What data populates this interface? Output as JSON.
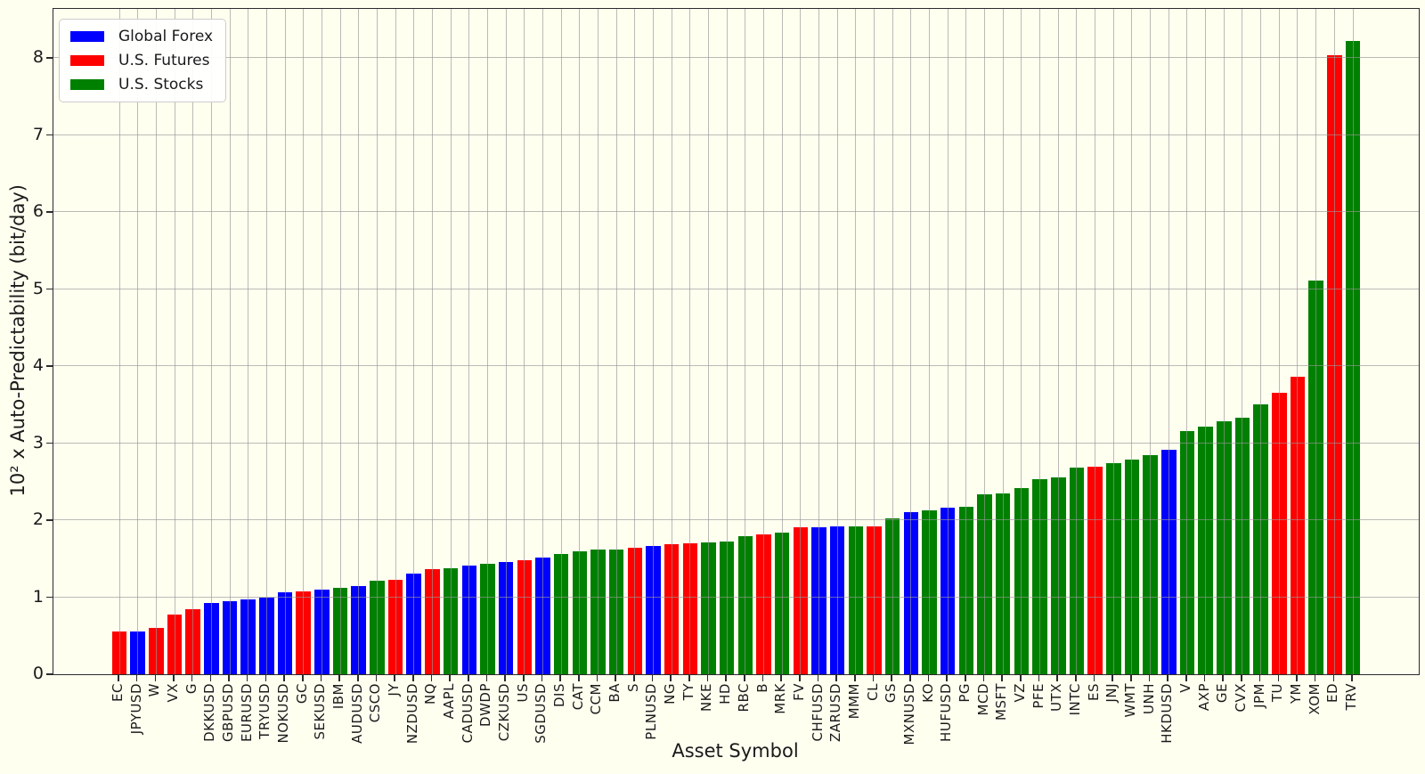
{
  "figure": {
    "background_color": "#FFFFF0",
    "xlabel": "Asset Symbol",
    "ylabel": "10² x Auto-Predictability (bit/day)",
    "y_ticks": [
      0,
      1,
      2,
      3,
      4,
      5,
      6,
      7,
      8
    ],
    "grid_color": "#969696",
    "spine_color": "#2b2b2b"
  },
  "legend": {
    "items": [
      {
        "label": "Global Forex",
        "color": "#0000FF"
      },
      {
        "label": "U.S. Futures",
        "color": "#FF0000"
      },
      {
        "label": "U.S. Stocks",
        "color": "#008000"
      }
    ]
  },
  "chart_data": {
    "type": "bar",
    "title": "",
    "xlabel": "Asset Symbol",
    "ylabel": "10^2 x Auto-Predictability (bit/day)",
    "ylim": [
      0,
      8.64
    ],
    "grid": true,
    "grid_above_bars": true,
    "legend_position": "upper left",
    "categories_legend": [
      "Global Forex",
      "U.S. Futures",
      "U.S. Stocks"
    ],
    "category_colors": {
      "Global Forex": "#0000FF",
      "U.S. Futures": "#FF0000",
      "U.S. Stocks": "#008000"
    },
    "bars": [
      {
        "symbol": "EC",
        "category": "U.S. Futures",
        "value": 0.55
      },
      {
        "symbol": "JPYUSD",
        "category": "Global Forex",
        "value": 0.56
      },
      {
        "symbol": "W",
        "category": "U.S. Futures",
        "value": 0.6
      },
      {
        "symbol": "VX",
        "category": "U.S. Futures",
        "value": 0.78
      },
      {
        "symbol": "G",
        "category": "U.S. Futures",
        "value": 0.84
      },
      {
        "symbol": "DKKUSD",
        "category": "Global Forex",
        "value": 0.93
      },
      {
        "symbol": "GBPUSD",
        "category": "Global Forex",
        "value": 0.95
      },
      {
        "symbol": "EURUSD",
        "category": "Global Forex",
        "value": 0.97
      },
      {
        "symbol": "TRYUSD",
        "category": "Global Forex",
        "value": 0.99
      },
      {
        "symbol": "NOKUSD",
        "category": "Global Forex",
        "value": 1.06
      },
      {
        "symbol": "GC",
        "category": "U.S. Futures",
        "value": 1.08
      },
      {
        "symbol": "SEKUSD",
        "category": "Global Forex",
        "value": 1.1
      },
      {
        "symbol": "IBM",
        "category": "U.S. Stocks",
        "value": 1.12
      },
      {
        "symbol": "AUDUSD",
        "category": "Global Forex",
        "value": 1.14
      },
      {
        "symbol": "CSCO",
        "category": "U.S. Stocks",
        "value": 1.21
      },
      {
        "symbol": "JY",
        "category": "U.S. Futures",
        "value": 1.23
      },
      {
        "symbol": "NZDUSD",
        "category": "Global Forex",
        "value": 1.31
      },
      {
        "symbol": "NQ",
        "category": "U.S. Futures",
        "value": 1.37
      },
      {
        "symbol": "AAPL",
        "category": "U.S. Stocks",
        "value": 1.38
      },
      {
        "symbol": "CADUSD",
        "category": "Global Forex",
        "value": 1.41
      },
      {
        "symbol": "DWDP",
        "category": "U.S. Stocks",
        "value": 1.44
      },
      {
        "symbol": "CZKUSD",
        "category": "Global Forex",
        "value": 1.46
      },
      {
        "symbol": "US",
        "category": "U.S. Futures",
        "value": 1.48
      },
      {
        "symbol": "SGDUSD",
        "category": "Global Forex",
        "value": 1.52
      },
      {
        "symbol": "DIS",
        "category": "U.S. Stocks",
        "value": 1.56
      },
      {
        "symbol": "CAT",
        "category": "U.S. Stocks",
        "value": 1.6
      },
      {
        "symbol": "CCM",
        "category": "U.S. Stocks",
        "value": 1.62
      },
      {
        "symbol": "BA",
        "category": "U.S. Stocks",
        "value": 1.62
      },
      {
        "symbol": "S",
        "category": "U.S. Futures",
        "value": 1.64
      },
      {
        "symbol": "PLNUSD",
        "category": "Global Forex",
        "value": 1.66
      },
      {
        "symbol": "NG",
        "category": "U.S. Futures",
        "value": 1.69
      },
      {
        "symbol": "TY",
        "category": "U.S. Futures",
        "value": 1.7
      },
      {
        "symbol": "NKE",
        "category": "U.S. Stocks",
        "value": 1.71
      },
      {
        "symbol": "HD",
        "category": "U.S. Stocks",
        "value": 1.72
      },
      {
        "symbol": "RBC",
        "category": "U.S. Stocks",
        "value": 1.79
      },
      {
        "symbol": "B",
        "category": "U.S. Futures",
        "value": 1.82
      },
      {
        "symbol": "MRK",
        "category": "U.S. Stocks",
        "value": 1.84
      },
      {
        "symbol": "FV",
        "category": "U.S. Futures",
        "value": 1.91
      },
      {
        "symbol": "CHFUSD",
        "category": "Global Forex",
        "value": 1.91
      },
      {
        "symbol": "ZARUSD",
        "category": "Global Forex",
        "value": 1.92
      },
      {
        "symbol": "MMM",
        "category": "U.S. Stocks",
        "value": 1.92
      },
      {
        "symbol": "CL",
        "category": "U.S. Futures",
        "value": 1.92
      },
      {
        "symbol": "GS",
        "category": "U.S. Stocks",
        "value": 2.02
      },
      {
        "symbol": "MXNUSD",
        "category": "Global Forex",
        "value": 2.1
      },
      {
        "symbol": "KO",
        "category": "U.S. Stocks",
        "value": 2.13
      },
      {
        "symbol": "HUFUSD",
        "category": "Global Forex",
        "value": 2.16
      },
      {
        "symbol": "PG",
        "category": "U.S. Stocks",
        "value": 2.17
      },
      {
        "symbol": "MCD",
        "category": "U.S. Stocks",
        "value": 2.34
      },
      {
        "symbol": "MSFT",
        "category": "U.S. Stocks",
        "value": 2.35
      },
      {
        "symbol": "VZ",
        "category": "U.S. Stocks",
        "value": 2.42
      },
      {
        "symbol": "PFE",
        "category": "U.S. Stocks",
        "value": 2.53
      },
      {
        "symbol": "UTX",
        "category": "U.S. Stocks",
        "value": 2.56
      },
      {
        "symbol": "INTC",
        "category": "U.S. Stocks",
        "value": 2.68
      },
      {
        "symbol": "ES",
        "category": "U.S. Futures",
        "value": 2.7
      },
      {
        "symbol": "JNJ",
        "category": "U.S. Stocks",
        "value": 2.74
      },
      {
        "symbol": "WMT",
        "category": "U.S. Stocks",
        "value": 2.79
      },
      {
        "symbol": "UNH",
        "category": "U.S. Stocks",
        "value": 2.85
      },
      {
        "symbol": "HKDUSD",
        "category": "Global Forex",
        "value": 2.92
      },
      {
        "symbol": "V",
        "category": "U.S. Stocks",
        "value": 3.16
      },
      {
        "symbol": "AXP",
        "category": "U.S. Stocks",
        "value": 3.21
      },
      {
        "symbol": "GE",
        "category": "U.S. Stocks",
        "value": 3.28
      },
      {
        "symbol": "CVX",
        "category": "U.S. Stocks",
        "value": 3.33
      },
      {
        "symbol": "JPM",
        "category": "U.S. Stocks",
        "value": 3.51
      },
      {
        "symbol": "TU",
        "category": "U.S. Futures",
        "value": 3.65
      },
      {
        "symbol": "YM",
        "category": "U.S. Futures",
        "value": 3.86
      },
      {
        "symbol": "XOM",
        "category": "U.S. Stocks",
        "value": 5.11
      },
      {
        "symbol": "ED",
        "category": "U.S. Futures",
        "value": 8.04
      },
      {
        "symbol": "TRV",
        "category": "U.S. Stocks",
        "value": 8.22
      }
    ]
  }
}
